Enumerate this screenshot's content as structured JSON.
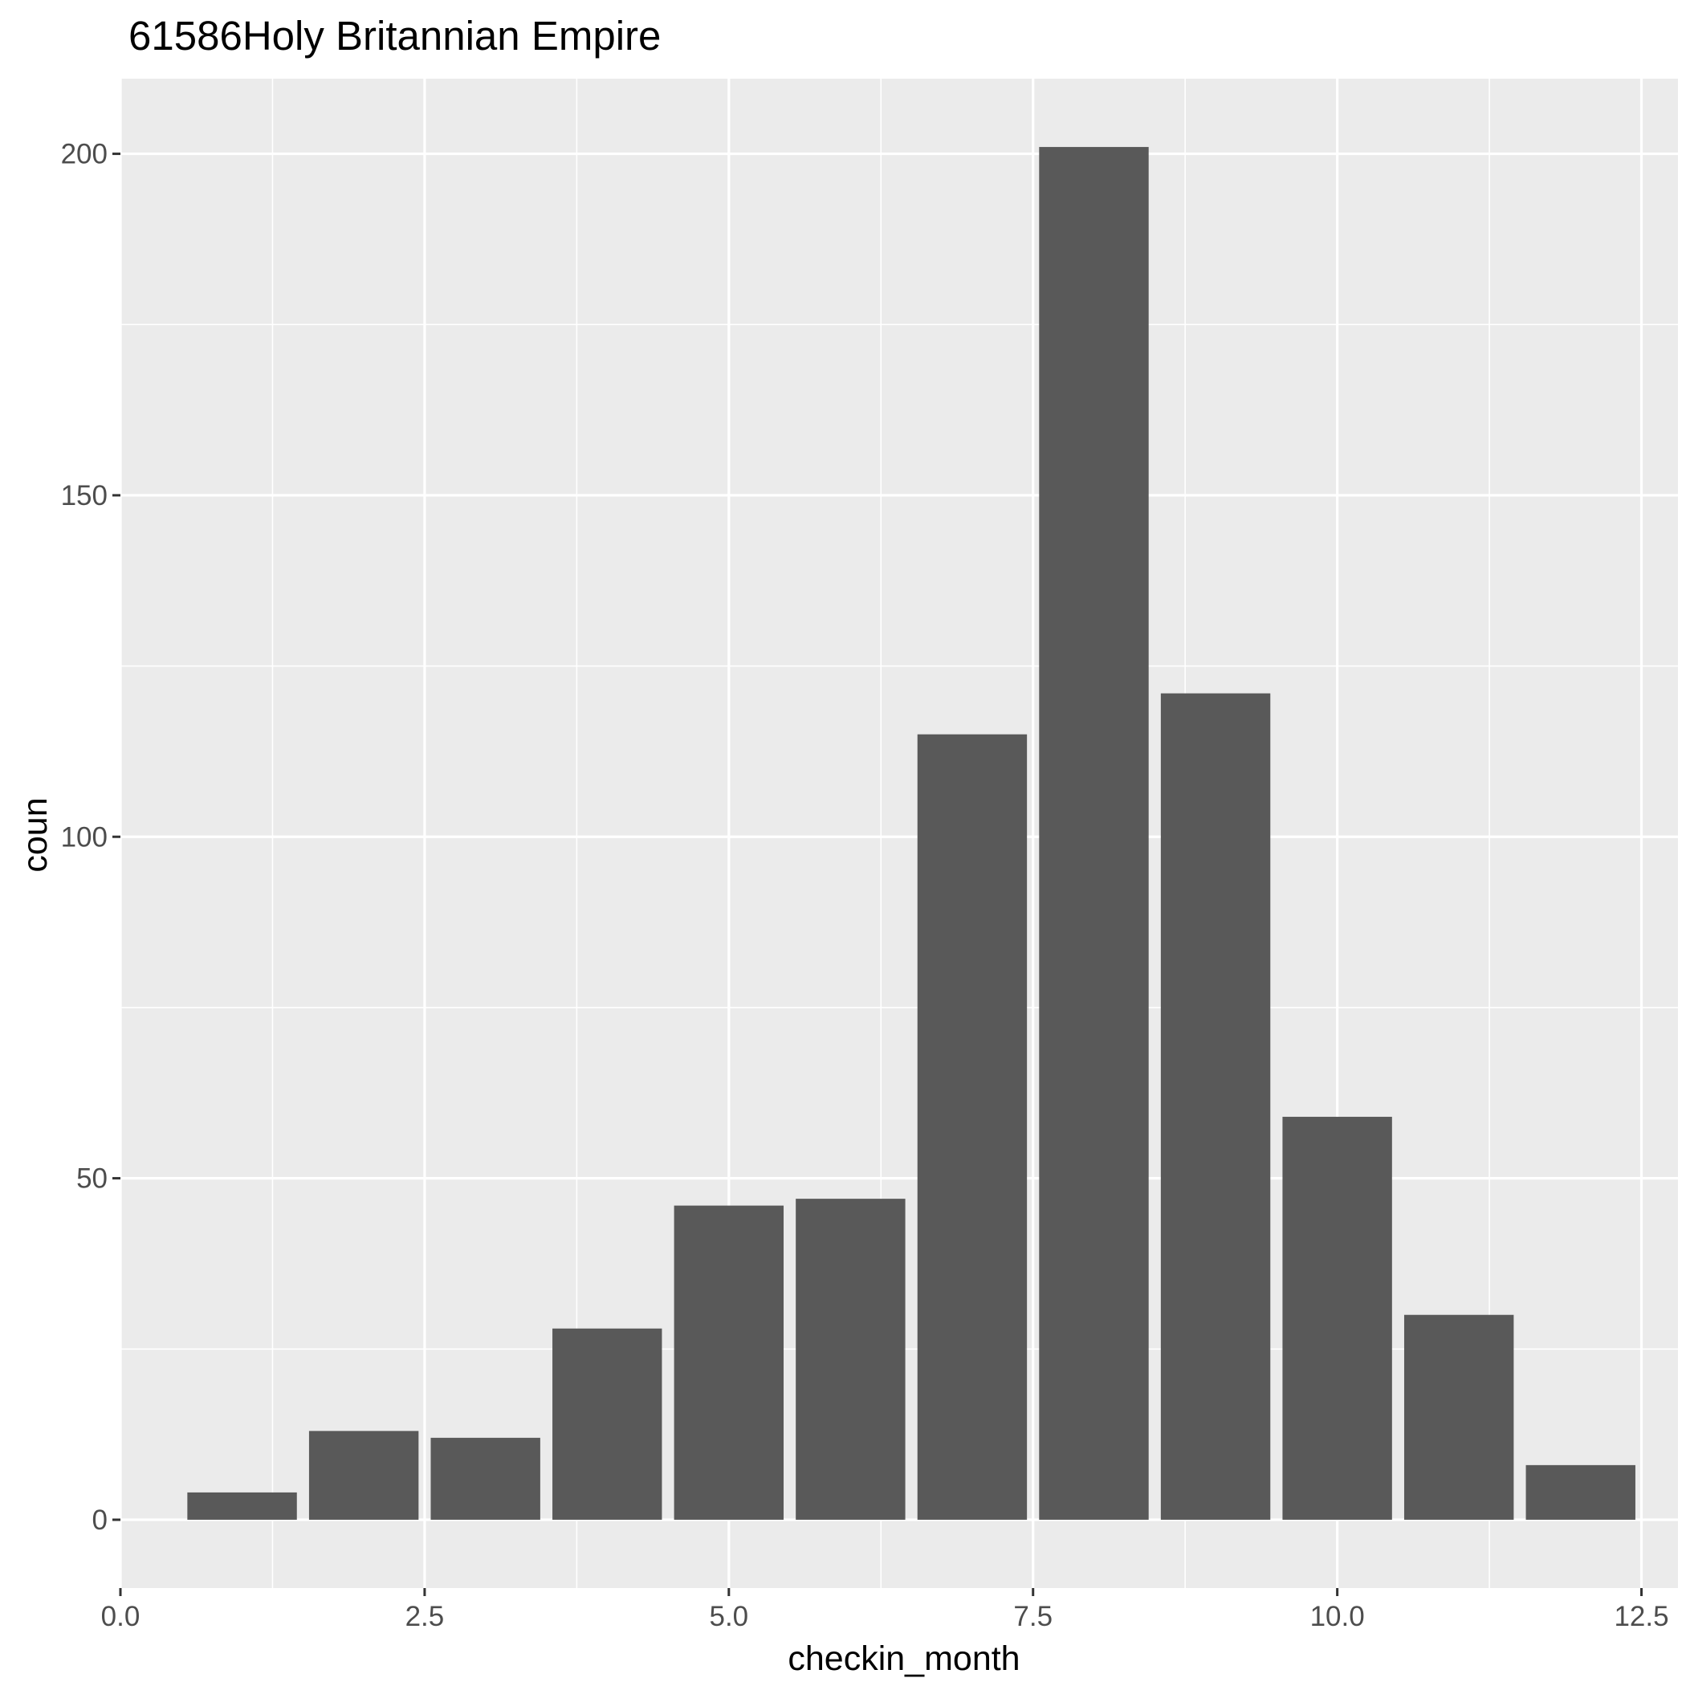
{
  "chart_data": {
    "type": "bar",
    "title": "61586Holy Britannian Empire",
    "xlabel": "checkin_month",
    "ylabel": "coun",
    "x": [
      1,
      2,
      3,
      4,
      5,
      6,
      7,
      8,
      9,
      10,
      11,
      12
    ],
    "values": [
      4,
      13,
      12,
      28,
      46,
      47,
      115,
      201,
      121,
      59,
      30,
      8
    ],
    "xlim": [
      0,
      12.8
    ],
    "ylim": [
      -10,
      211
    ],
    "x_ticks": [
      0.0,
      2.5,
      5.0,
      7.5,
      10.0,
      12.5
    ],
    "x_tick_labels": [
      "0.0",
      "2.5",
      "5.0",
      "7.5",
      "10.0",
      "12.5"
    ],
    "y_ticks": [
      0,
      50,
      100,
      150,
      200
    ],
    "y_tick_labels": [
      "0",
      "50",
      "100",
      "150",
      "200"
    ],
    "grid": true,
    "colors": {
      "panel_background": "#ebebeb",
      "grid_major": "#ffffff",
      "bar_fill": "#595959",
      "tick_text": "#4d4d4d",
      "axis_ticks": "#333333"
    }
  }
}
